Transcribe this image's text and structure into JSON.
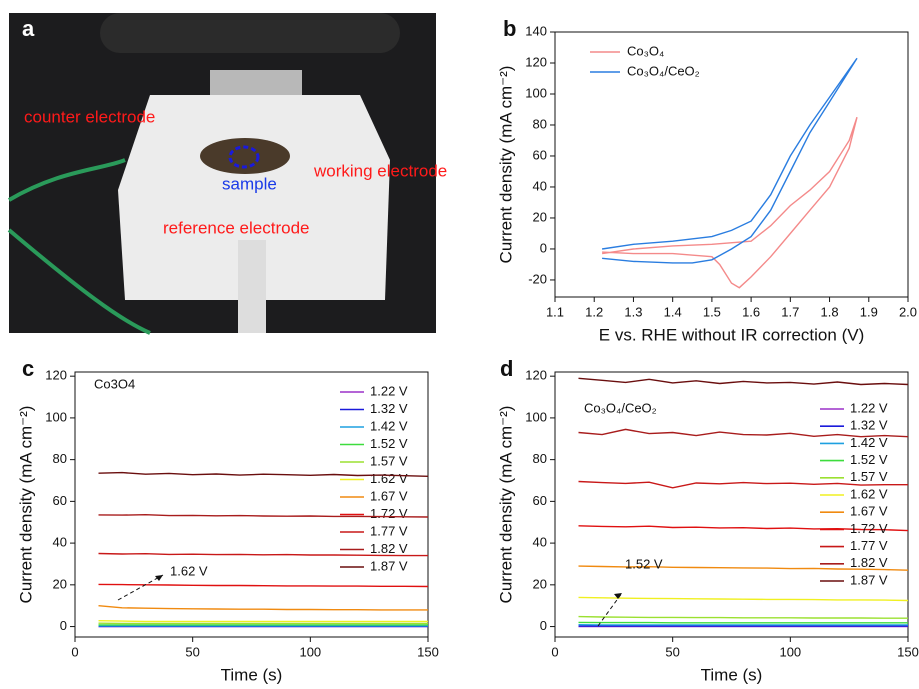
{
  "photo": {
    "panel_label": "a",
    "labels": [
      "counter electrode",
      "sample",
      "working electrode",
      "reference electrode"
    ]
  },
  "chart_data": [
    {
      "type": "line",
      "panel_label": "b",
      "x_label": "E vs. RHE without IR correction (V)",
      "y_label": "Current density (mA cm⁻²)",
      "xlim": [
        1.1,
        2.0
      ],
      "xticks": [
        1.1,
        1.2,
        1.3,
        1.4,
        1.5,
        1.6,
        1.7,
        1.8,
        1.9,
        {
          "value": 2.0,
          "label": "2.0"
        }
      ],
      "ylim": [
        -31,
        140
      ],
      "yticks": [
        -20,
        0,
        20,
        40,
        60,
        80,
        100,
        120,
        140
      ],
      "legend": "upper left",
      "series": [
        {
          "name": "Co₃O₄",
          "color": "#f48a8a",
          "x": [
            1.22,
            1.3,
            1.4,
            1.5,
            1.6,
            1.65,
            1.7,
            1.75,
            1.8,
            1.85,
            1.87,
            1.85,
            1.8,
            1.75,
            1.7,
            1.65,
            1.6,
            1.57,
            1.55,
            1.52,
            1.5,
            1.4,
            1.3,
            1.22
          ],
          "values": [
            -3,
            0,
            2,
            3,
            5,
            15,
            28,
            38,
            50,
            70,
            85,
            65,
            40,
            25,
            10,
            -5,
            -18,
            -25,
            -22,
            -10,
            -5,
            -3,
            -3,
            -2
          ]
        },
        {
          "name": "Co₃O₄/CeO₂",
          "color": "#2a7de0",
          "x": [
            1.22,
            1.3,
            1.4,
            1.5,
            1.55,
            1.6,
            1.65,
            1.7,
            1.75,
            1.8,
            1.87,
            1.8,
            1.75,
            1.7,
            1.65,
            1.6,
            1.55,
            1.5,
            1.45,
            1.4,
            1.3,
            1.22
          ],
          "values": [
            0,
            3,
            5,
            8,
            12,
            18,
            35,
            60,
            80,
            98,
            123,
            95,
            75,
            50,
            25,
            8,
            0,
            -7,
            -9,
            -9,
            -8,
            -6
          ]
        }
      ]
    },
    {
      "type": "line",
      "panel_label": "c",
      "x_label": "Time (s)",
      "y_label": "Current density (mA cm⁻²)",
      "annotations": [
        "Co3O4",
        "1.62 V"
      ],
      "xlim": [
        0,
        150
      ],
      "xticks": [
        0,
        50,
        100,
        150
      ],
      "ylim": [
        -5,
        122
      ],
      "yticks": [
        0,
        20,
        40,
        60,
        80,
        100,
        120
      ],
      "legend": "upper right",
      "x": [
        10,
        20,
        30,
        40,
        50,
        60,
        70,
        80,
        90,
        100,
        110,
        120,
        130,
        140,
        150
      ],
      "series": [
        {
          "name": "1.22 V",
          "color": "#9b30c8",
          "values": [
            0,
            0,
            0,
            0,
            0,
            0,
            0,
            0,
            0,
            0,
            0,
            0,
            0,
            0,
            0
          ]
        },
        {
          "name": "1.32 V",
          "color": "#1a1adb",
          "values": [
            0.1,
            0.1,
            0.1,
            0.1,
            0.1,
            0.1,
            0.1,
            0.1,
            0.1,
            0.1,
            0.1,
            0.1,
            0.1,
            0.1,
            0.1
          ]
        },
        {
          "name": "1.42 V",
          "color": "#1ea0e0",
          "values": [
            0.3,
            0.3,
            0.3,
            0.3,
            0.3,
            0.3,
            0.3,
            0.3,
            0.3,
            0.3,
            0.3,
            0.3,
            0.3,
            0.3,
            0.3
          ]
        },
        {
          "name": "1.52 V",
          "color": "#3ddc3d",
          "values": [
            0.8,
            0.8,
            0.8,
            0.8,
            0.8,
            0.8,
            0.8,
            0.8,
            0.8,
            0.8,
            0.8,
            0.8,
            0.8,
            0.8,
            0.8
          ]
        },
        {
          "name": "1.57 V",
          "color": "#9be030",
          "values": [
            1.6,
            1.5,
            1.5,
            1.5,
            1.5,
            1.5,
            1.5,
            1.5,
            1.5,
            1.5,
            1.5,
            1.5,
            1.5,
            1.5,
            1.5
          ]
        },
        {
          "name": "1.62 V",
          "color": "#f0f020",
          "values": [
            2.8,
            2.6,
            2.5,
            2.5,
            2.5,
            2.5,
            2.5,
            2.5,
            2.5,
            2.5,
            2.5,
            2.5,
            2.5,
            2.5,
            2.5
          ]
        },
        {
          "name": "1.67 V",
          "color": "#f08a10",
          "values": [
            10,
            9,
            8.8,
            8.6,
            8.5,
            8.4,
            8.3,
            8.3,
            8.2,
            8.2,
            8.1,
            8.1,
            8,
            8,
            8
          ]
        },
        {
          "name": "1.72 V",
          "color": "#e01010",
          "values": [
            20.2,
            20.1,
            20,
            19.9,
            19.8,
            19.7,
            19.7,
            19.6,
            19.5,
            19.5,
            19.4,
            19.4,
            19.3,
            19.3,
            19.2
          ]
        },
        {
          "name": "1.77 V",
          "color": "#c81818",
          "values": [
            35,
            34.8,
            34.9,
            34.6,
            34.7,
            34.5,
            34.6,
            34.4,
            34.5,
            34.3,
            34.3,
            34.2,
            34.1,
            34,
            34
          ]
        },
        {
          "name": "1.82 V",
          "color": "#a81c1c",
          "values": [
            53.5,
            53.4,
            53.6,
            53.2,
            53.3,
            53.1,
            53.2,
            53,
            52.9,
            53,
            52.8,
            52.8,
            52.7,
            52.6,
            52.5
          ]
        },
        {
          "name": "1.87 V",
          "color": "#6a0e0e",
          "values": [
            73.5,
            73.8,
            73,
            73.4,
            72.8,
            73.1,
            72.6,
            73,
            72.8,
            72.5,
            72.9,
            72.4,
            72.6,
            72.3,
            72
          ]
        }
      ]
    },
    {
      "type": "line",
      "panel_label": "d",
      "x_label": "Time (s)",
      "y_label": "Current density (mA cm⁻²)",
      "annotations": [
        "Co₃O₄/CeO₂",
        "1.52 V"
      ],
      "xlim": [
        0,
        150
      ],
      "xticks": [
        0,
        50,
        100,
        150
      ],
      "ylim": [
        -5,
        122
      ],
      "yticks": [
        0,
        20,
        40,
        60,
        80,
        100,
        120
      ],
      "legend": "upper right",
      "x": [
        10,
        20,
        30,
        40,
        50,
        60,
        70,
        80,
        90,
        100,
        110,
        120,
        130,
        140,
        150
      ],
      "series": [
        {
          "name": "1.22 V",
          "color": "#9b30c8",
          "values": [
            0,
            0,
            0,
            0,
            0,
            0,
            0,
            0,
            0,
            0,
            0,
            0,
            0,
            0,
            0
          ]
        },
        {
          "name": "1.32 V",
          "color": "#1a1adb",
          "values": [
            0.2,
            0.2,
            0.2,
            0.2,
            0.2,
            0.2,
            0.2,
            0.2,
            0.2,
            0.2,
            0.2,
            0.2,
            0.2,
            0.2,
            0.2
          ]
        },
        {
          "name": "1.42 V",
          "color": "#1ea0e0",
          "values": [
            0.9,
            0.8,
            0.8,
            0.8,
            0.8,
            0.8,
            0.8,
            0.8,
            0.8,
            0.8,
            0.8,
            0.8,
            0.8,
            0.8,
            0.8
          ]
        },
        {
          "name": "1.52 V",
          "color": "#3ddc3d",
          "values": [
            2,
            1.9,
            1.9,
            1.9,
            1.8,
            1.8,
            1.8,
            1.8,
            1.8,
            1.8,
            1.8,
            1.8,
            1.8,
            1.8,
            1.8
          ]
        },
        {
          "name": "1.57 V",
          "color": "#9be030",
          "values": [
            4.8,
            4.6,
            4.5,
            4.4,
            4.4,
            4.3,
            4.3,
            4.2,
            4.2,
            4.2,
            4.1,
            4.1,
            4.1,
            4,
            4
          ]
        },
        {
          "name": "1.62 V",
          "color": "#f0f020",
          "values": [
            14,
            13.8,
            13.6,
            13.5,
            13.4,
            13.3,
            13.2,
            13.1,
            13,
            13,
            12.9,
            12.8,
            12.8,
            12.7,
            12.5
          ]
        },
        {
          "name": "1.67 V",
          "color": "#f08a10",
          "values": [
            29,
            28.8,
            28.6,
            28.7,
            28.4,
            28.3,
            28.2,
            28.1,
            28,
            27.8,
            27.9,
            27.6,
            27.5,
            27.3,
            27
          ]
        },
        {
          "name": "1.72 V",
          "color": "#e01010",
          "values": [
            48.3,
            48,
            47.8,
            48.1,
            47.5,
            47.6,
            47.3,
            47.4,
            47,
            47.2,
            46.8,
            46.9,
            46.5,
            46.4,
            46
          ]
        },
        {
          "name": "1.77 V",
          "color": "#c81818",
          "values": [
            69.5,
            69,
            68.6,
            69.2,
            66.5,
            68.8,
            68.4,
            69,
            68.5,
            68.7,
            68.2,
            68.6,
            67.8,
            68,
            68
          ]
        },
        {
          "name": "1.82 V",
          "color": "#a81c1c",
          "values": [
            93,
            92,
            94.5,
            92.5,
            93,
            91.5,
            93.2,
            92,
            91.8,
            92.6,
            91.2,
            92,
            91,
            91.5,
            91
          ]
        },
        {
          "name": "1.87 V",
          "color": "#6a0e0e",
          "values": [
            119,
            118,
            117,
            118.5,
            116.8,
            117.8,
            116.5,
            117.5,
            116.8,
            117,
            116.2,
            117.2,
            116,
            116.5,
            116
          ]
        }
      ]
    }
  ]
}
